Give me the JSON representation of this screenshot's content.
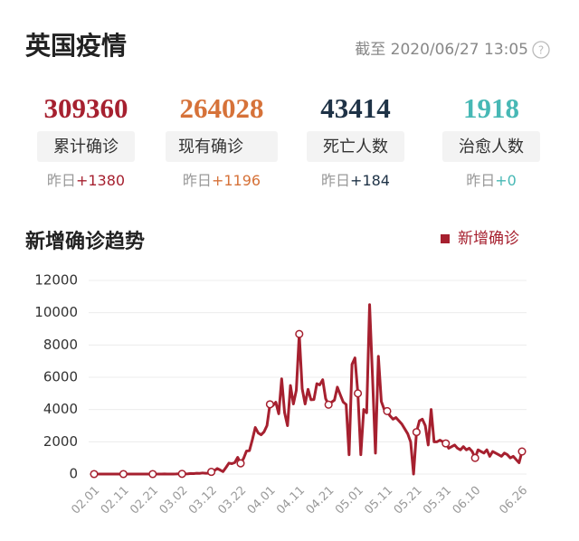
{
  "header": {
    "title": "英国疫情",
    "update_time": "截至 2020/06/27 13:05"
  },
  "stats": [
    {
      "value": 309360,
      "label": "累计确诊",
      "delta_prefix": "昨日",
      "delta": "+1380",
      "color": "#a6202f"
    },
    {
      "value": 264028,
      "label": "现有确诊",
      "delta_prefix": "昨日",
      "delta": "+1196",
      "color": "#d67239"
    },
    {
      "value": 43414,
      "label": "死亡人数",
      "delta_prefix": "昨日",
      "delta": "+184",
      "color": "#1e3246"
    },
    {
      "value": 1918,
      "label": "治愈人数",
      "delta_prefix": "昨日",
      "delta": "+0",
      "color": "#47b8b5"
    }
  ],
  "chart_data": {
    "type": "line",
    "title": "新增确诊趋势",
    "categories": [
      "02.01",
      null,
      null,
      null,
      null,
      null,
      null,
      null,
      null,
      null,
      "02.11",
      null,
      null,
      null,
      null,
      null,
      null,
      null,
      null,
      null,
      "02.21",
      null,
      null,
      null,
      null,
      null,
      null,
      null,
      null,
      null,
      "03.02",
      null,
      null,
      null,
      null,
      null,
      null,
      null,
      null,
      null,
      "03.12",
      null,
      null,
      null,
      null,
      null,
      null,
      null,
      null,
      null,
      "03.22",
      null,
      null,
      null,
      null,
      null,
      null,
      null,
      null,
      null,
      "04.01",
      null,
      null,
      null,
      null,
      null,
      null,
      null,
      null,
      null,
      "04.11",
      null,
      null,
      null,
      null,
      null,
      null,
      null,
      null,
      null,
      "04.21",
      null,
      null,
      null,
      null,
      null,
      null,
      null,
      null,
      null,
      "05.01",
      null,
      null,
      null,
      null,
      null,
      null,
      null,
      null,
      null,
      "05.11",
      null,
      null,
      null,
      null,
      null,
      null,
      null,
      null,
      null,
      "05.21",
      null,
      null,
      null,
      null,
      null,
      null,
      null,
      null,
      null,
      "05.31",
      null,
      null,
      null,
      null,
      null,
      null,
      null,
      null,
      null,
      "06.10",
      null,
      null,
      null,
      null,
      null,
      null,
      null,
      null,
      null,
      null,
      null,
      null,
      null,
      null,
      null,
      "06.26"
    ],
    "series": [
      {
        "name": "新增确诊",
        "color": "#a6202f",
        "values": [
          0,
          0,
          0,
          0,
          0,
          0,
          0,
          0,
          1,
          0,
          0,
          0,
          0,
          0,
          0,
          0,
          0,
          0,
          0,
          0,
          0,
          0,
          0,
          0,
          4,
          0,
          3,
          2,
          4,
          12,
          13,
          4,
          11,
          34,
          30,
          48,
          43,
          67,
          48,
          52,
          134,
          208,
          342,
          251,
          152,
          407,
          676,
          643,
          714,
          1035,
          665,
          967,
          1427,
          1452,
          2129,
          2885,
          2546,
          2433,
          2619,
          3009,
          4324,
          4244,
          4450,
          3735,
          5903,
          3802,
          3000,
          5491,
          4344,
          5195,
          8681,
          5288,
          4342,
          5252,
          4605,
          4617,
          5599,
          5526,
          5850,
          4676,
          4301,
          4451,
          4583,
          5386,
          4913,
          4463,
          4309,
          1200,
          6800,
          7200,
          5000,
          1200,
          4000,
          3800,
          10500,
          6000,
          1300,
          7300,
          4500,
          4000,
          3900,
          3600,
          3400,
          3500,
          3300,
          3100,
          2800,
          2500,
          2000,
          0,
          2600,
          3300,
          3400,
          3000,
          1800,
          4000,
          2000,
          2000,
          2100,
          2000,
          1900,
          1600,
          1700,
          1800,
          1600,
          1500,
          1700,
          1500,
          1600,
          1400,
          1000,
          1500,
          1400,
          1300,
          1500,
          1100,
          1400,
          1300,
          1200,
          1100,
          1300,
          1200,
          1000,
          1100,
          900,
          700,
          1400
        ]
      }
    ],
    "ylim": [
      0,
      12000
    ],
    "yticks": [
      0,
      2000,
      4000,
      6000,
      8000,
      10000,
      12000
    ],
    "grid": true,
    "legend": "top-right"
  }
}
